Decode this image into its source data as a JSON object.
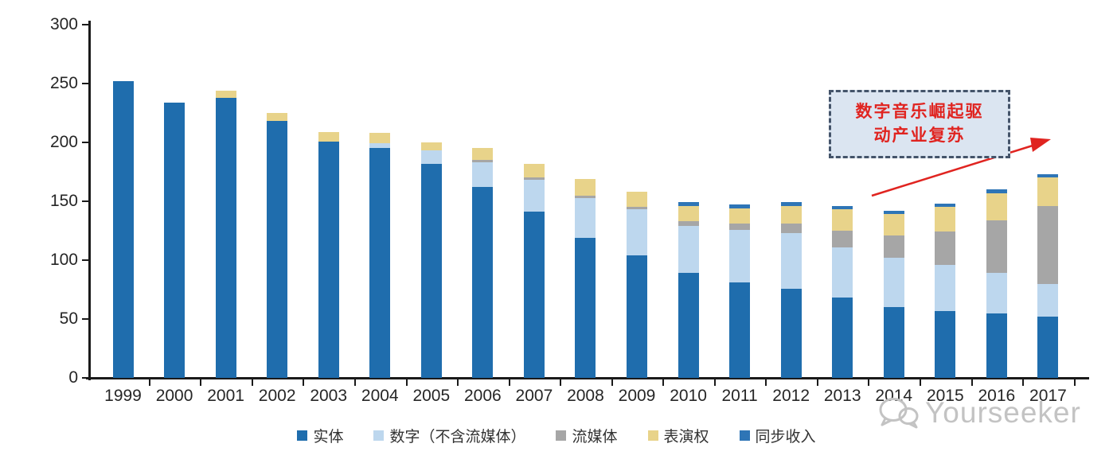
{
  "chart_data": {
    "type": "bar",
    "stacked": true,
    "grid": false,
    "legend_position": "bottom",
    "ylim": [
      0,
      300
    ],
    "yticks": [
      0,
      50,
      100,
      150,
      200,
      250,
      300
    ],
    "categories": [
      "1999",
      "2000",
      "2001",
      "2002",
      "2003",
      "2004",
      "2005",
      "2006",
      "2007",
      "2008",
      "2009",
      "2010",
      "2011",
      "2012",
      "2013",
      "2014",
      "2015",
      "2016",
      "2017"
    ],
    "series": [
      {
        "id": "physical",
        "name": "实体",
        "color": "#1f6dad",
        "values": [
          252,
          234,
          238,
          218,
          201,
          195,
          182,
          162,
          141,
          119,
          104,
          89,
          81,
          76,
          68,
          60,
          57,
          55,
          52
        ]
      },
      {
        "id": "digital",
        "name": "数字（不含流媒体）",
        "color": "#bdd7ee",
        "values": [
          0,
          0,
          0,
          0,
          0,
          4,
          11,
          21,
          27,
          34,
          39,
          40,
          45,
          47,
          43,
          42,
          39,
          34,
          28
        ]
      },
      {
        "id": "streaming",
        "name": "流媒体",
        "color": "#a6a6a6",
        "values": [
          0,
          0,
          0,
          0,
          0,
          0,
          0,
          2,
          2,
          2,
          2,
          4,
          5,
          8,
          14,
          19,
          28,
          45,
          66
        ]
      },
      {
        "id": "performance",
        "name": "表演权",
        "color": "#e8d38a",
        "values": [
          0,
          0,
          6,
          7,
          8,
          9,
          7,
          10,
          12,
          14,
          13,
          13,
          13,
          15,
          18,
          18,
          21,
          23,
          24
        ]
      },
      {
        "id": "sync",
        "name": "同步收入",
        "color": "#2e75b6",
        "values": [
          0,
          0,
          0,
          0,
          0,
          0,
          0,
          0,
          0,
          0,
          0,
          3,
          3,
          3,
          3,
          3,
          3,
          3,
          3
        ]
      }
    ],
    "totals": [
      252,
      234,
      244,
      225,
      209,
      208,
      200,
      195,
      182,
      169,
      158,
      149,
      147,
      149,
      146,
      142,
      148,
      160,
      173
    ]
  },
  "annotation": {
    "line1": "数字音乐崛起驱",
    "line2": "动产业复苏",
    "text_color": "#e02420",
    "box_fill": "#dbe5f1",
    "box_border": "#44546a",
    "arrow_color": "#e02420"
  },
  "watermark": {
    "text": "Yourseeker",
    "icon": "wechat-icon",
    "color": "#c3c3c3"
  }
}
